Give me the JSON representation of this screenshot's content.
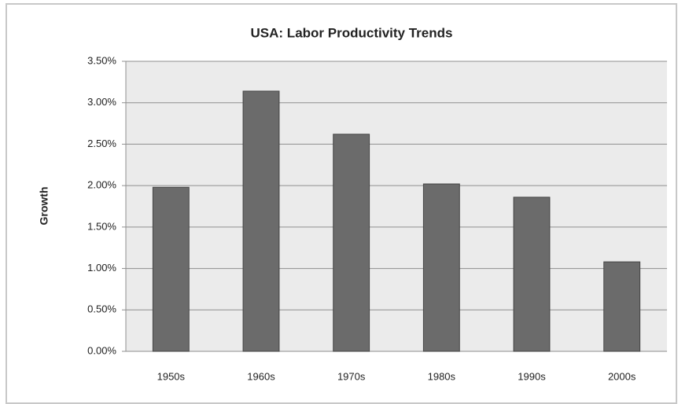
{
  "chart_data": {
    "type": "bar",
    "title": "USA: Labor Productivity Trends",
    "y_label": "Growth",
    "categories": [
      "1950s",
      "1960s",
      "1970s",
      "1980s",
      "1990s",
      "2000s"
    ],
    "values": [
      1.98,
      3.14,
      2.62,
      2.02,
      1.86,
      1.08
    ],
    "color": "#6b6b6b",
    "ylim": [
      0,
      3.5
    ],
    "yticks": [
      {
        "value": 0,
        "label": "0.00%"
      },
      {
        "value": 0.5,
        "label": "0.50%"
      },
      {
        "value": 1,
        "label": "1.00%"
      },
      {
        "value": 1.5,
        "label": "1.50%"
      },
      {
        "value": 2,
        "label": "2.00%"
      },
      {
        "value": 2.5,
        "label": "2.50%"
      },
      {
        "value": 3,
        "label": "3.00%"
      },
      {
        "value": 3.5,
        "label": "3.50%"
      }
    ],
    "grid": true
  }
}
